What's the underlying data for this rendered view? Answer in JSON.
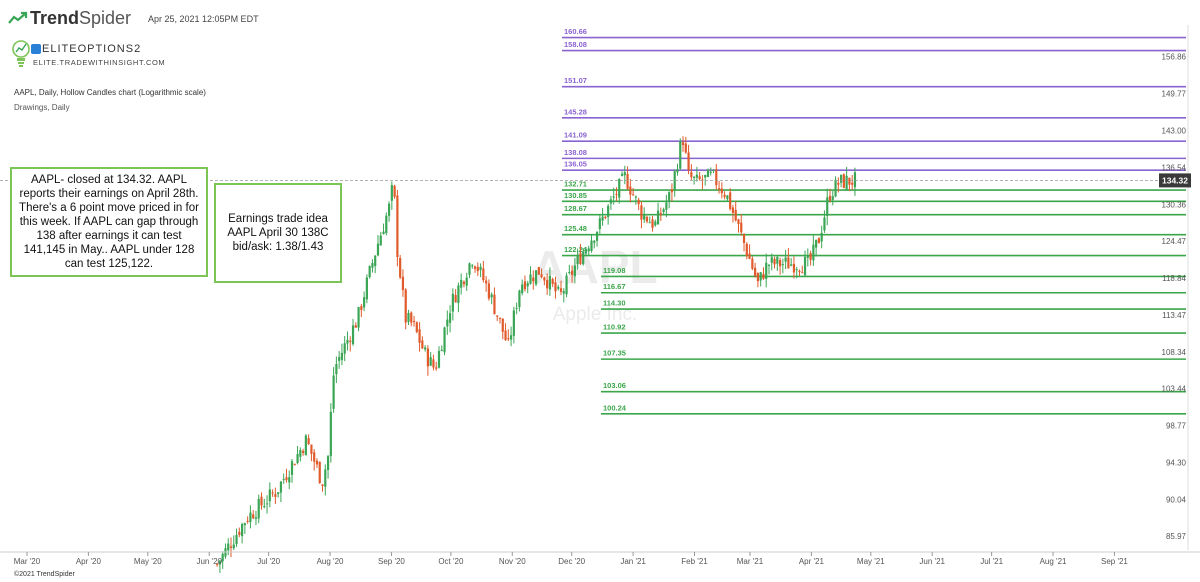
{
  "header": {
    "brand_name_bold": "Trend",
    "brand_name_rest": "Spider",
    "timestamp": "Apr 25, 2021 12:05PM EDT",
    "author_handle": "ELITEOPTIONS2",
    "author_url": "ELITE.TRADEWITHINSIGHT.COM",
    "chart_subtitle": "AAPL, Daily, Hollow Candles chart (Logarithmic scale)",
    "drawings_label": "Drawings, Daily",
    "copyright": "©2021 TrendSpider"
  },
  "notes": {
    "note1": "AAPL- closed at 134.32. AAPL reports their earnings on April 28th. There's a 6 point move priced in for this week. If AAPL can gap through 138 after earnings it can test 141,145 in May.. AAPL under 128 can test 125,122.",
    "note2": "Earnings trade idea AAPL April 30 138C bid/ask: 1.38/1.43"
  },
  "colors": {
    "up": "#3aa655",
    "down": "#e05a2b",
    "resistance": "#8a63d2",
    "support": "#3aa64a",
    "last_price_tag": "#3a3a3a",
    "note_border": "#7cc456"
  },
  "chart_data": {
    "type": "candlestick",
    "symbol": "AAPL",
    "watermark": "AAPL",
    "watermark_sub": "Apple Inc.",
    "scale": "log",
    "ylim": [
      84.5,
      162.2
    ],
    "y_ticks": [
      156.86,
      149.77,
      143.0,
      136.54,
      130.36,
      124.47,
      118.84,
      113.47,
      108.34,
      103.44,
      98.77,
      94.3,
      90.04,
      85.97
    ],
    "x_ticks": [
      "Mar '20",
      "Apr '20",
      "May '20",
      "Jun '20",
      "Jul '20",
      "Aug '20",
      "Sep '20",
      "Oct '20",
      "Nov '20",
      "Dec '20",
      "Jan '21",
      "Feb '21",
      "Mar '21",
      "Apr '21",
      "May '21",
      "Jun '21",
      "Jul '21",
      "Aug '21",
      "Sep '21"
    ],
    "last_price": 134.32,
    "resistance_levels": [
      160.66,
      158.08,
      151.07,
      145.28,
      141.09,
      138.08,
      136.05
    ],
    "support_levels": [
      132.71,
      130.85,
      128.67,
      125.48,
      122.24,
      119.08,
      116.67,
      114.3,
      110.92,
      107.35,
      103.06,
      100.24
    ],
    "anchors": [
      [
        "2020-06-05",
        83.0
      ],
      [
        "2020-06-20",
        88.0
      ],
      [
        "2020-07-05",
        91.0
      ],
      [
        "2020-07-20",
        97.0
      ],
      [
        "2020-07-28",
        92.0
      ],
      [
        "2020-07-31",
        95.0
      ],
      [
        "2020-08-03",
        106.0
      ],
      [
        "2020-08-15",
        113.0
      ],
      [
        "2020-08-25",
        124.0
      ],
      [
        "2020-08-31",
        130.0
      ],
      [
        "2020-09-02",
        134.0
      ],
      [
        "2020-09-04",
        123.0
      ],
      [
        "2020-09-08",
        113.0
      ],
      [
        "2020-09-12",
        112.0
      ],
      [
        "2020-09-18",
        108.0
      ],
      [
        "2020-09-23",
        106.0
      ],
      [
        "2020-10-01",
        115.0
      ],
      [
        "2020-10-12",
        122.0
      ],
      [
        "2020-10-20",
        117.0
      ],
      [
        "2020-10-30",
        109.0
      ],
      [
        "2020-11-05",
        118.0
      ],
      [
        "2020-11-15",
        120.0
      ],
      [
        "2020-11-25",
        116.0
      ],
      [
        "2020-12-05",
        122.0
      ],
      [
        "2020-12-15",
        127.0
      ],
      [
        "2020-12-28",
        135.0
      ],
      [
        "2021-01-05",
        129.0
      ],
      [
        "2021-01-12",
        127.0
      ],
      [
        "2021-01-20",
        132.0
      ],
      [
        "2021-01-26",
        142.0
      ],
      [
        "2021-01-29",
        135.0
      ],
      [
        "2021-02-02",
        134.0
      ],
      [
        "2021-02-10",
        135.0
      ],
      [
        "2021-02-17",
        132.0
      ],
      [
        "2021-02-25",
        125.0
      ],
      [
        "2021-03-05",
        118.0
      ],
      [
        "2021-03-10",
        121.0
      ],
      [
        "2021-03-20",
        121.0
      ],
      [
        "2021-03-31",
        121.0
      ],
      [
        "2021-04-05",
        125.0
      ],
      [
        "2021-04-10",
        132.0
      ],
      [
        "2021-04-15",
        134.0
      ],
      [
        "2021-04-23",
        134.32
      ]
    ]
  }
}
